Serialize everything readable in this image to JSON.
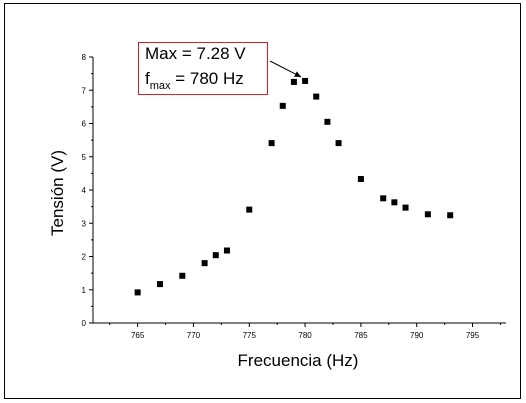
{
  "chart_data": {
    "type": "scatter",
    "xlabel": "Frecuencia (Hz)",
    "ylabel": "Tensión (V)",
    "xlim": [
      761,
      798
    ],
    "ylim": [
      0,
      8
    ],
    "xticks": [
      765,
      770,
      775,
      780,
      785,
      790,
      795
    ],
    "yticks": [
      0,
      1,
      2,
      3,
      4,
      5,
      6,
      7,
      8
    ],
    "grid": false,
    "marker": "square",
    "color": "#000000",
    "points": [
      {
        "x": 765,
        "y": 0.92
      },
      {
        "x": 767,
        "y": 1.17
      },
      {
        "x": 769,
        "y": 1.42
      },
      {
        "x": 771,
        "y": 1.8
      },
      {
        "x": 772,
        "y": 2.04
      },
      {
        "x": 773,
        "y": 2.18
      },
      {
        "x": 775,
        "y": 3.41
      },
      {
        "x": 777,
        "y": 5.41
      },
      {
        "x": 778,
        "y": 6.53
      },
      {
        "x": 779,
        "y": 7.25
      },
      {
        "x": 780,
        "y": 7.28
      },
      {
        "x": 781,
        "y": 6.81
      },
      {
        "x": 782,
        "y": 6.05
      },
      {
        "x": 783,
        "y": 5.41
      },
      {
        "x": 785,
        "y": 4.33
      },
      {
        "x": 787,
        "y": 3.75
      },
      {
        "x": 788,
        "y": 3.63
      },
      {
        "x": 789,
        "y": 3.47
      },
      {
        "x": 791,
        "y": 3.27
      },
      {
        "x": 793,
        "y": 3.24
      }
    ],
    "annotation": {
      "line1": "Max = 7.28 V",
      "line2_symbol": "f",
      "line2_subscript": "max",
      "line2_value": " = 780 Hz",
      "border_color": "#e02020",
      "target": {
        "x": 780,
        "y": 7.28
      }
    }
  }
}
